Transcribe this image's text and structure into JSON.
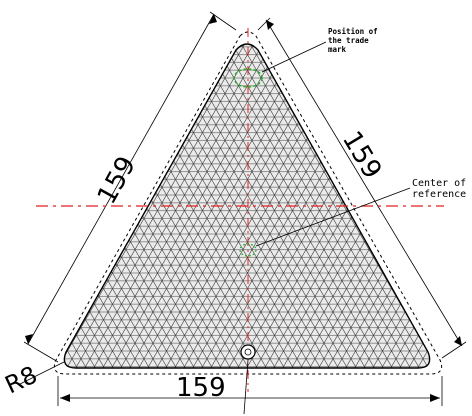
{
  "drawing": {
    "dimensions": {
      "left_side": "159",
      "right_side": "159",
      "bottom": "159",
      "corner_radius": "R8"
    },
    "annotations": {
      "trade_mark_line1": "Position of",
      "trade_mark_line2": "the trade",
      "trade_mark_line3": "mark",
      "center_line1": "Center of",
      "center_line2": "reference"
    },
    "colors": {
      "outline": "#000000",
      "hatch": "#4a4a4a",
      "centerline": "#e02020",
      "marker": "#22aa22"
    }
  }
}
